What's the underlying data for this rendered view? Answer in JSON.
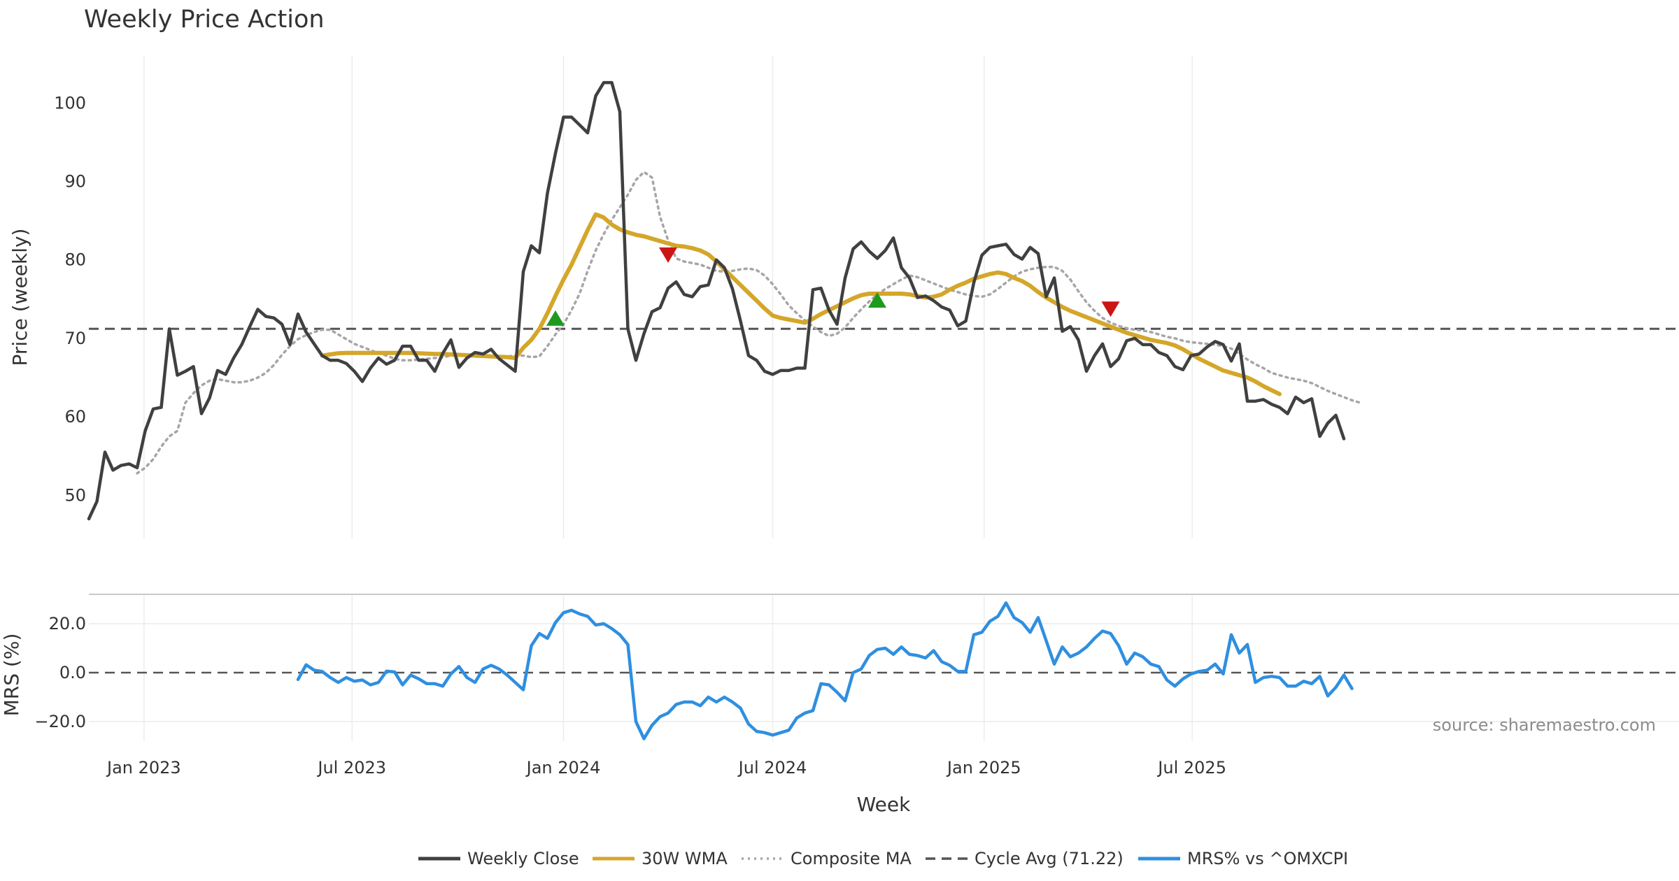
{
  "chart_data": {
    "type": "line",
    "title": "Weekly Price Action",
    "xlabel": "Week",
    "source": "source: sharemaestro.com",
    "x_start": "2022-11-14",
    "x_step_days": 7,
    "x_ticks": [
      {
        "label": "Jan 2023",
        "date": "2023-01-01"
      },
      {
        "label": "Jul 2023",
        "date": "2023-07-01"
      },
      {
        "label": "Jan 2024",
        "date": "2024-01-01"
      },
      {
        "label": "Jul 2024",
        "date": "2024-07-01"
      },
      {
        "label": "Jan 2025",
        "date": "2025-01-01"
      },
      {
        "label": "Jul 2025",
        "date": "2025-07-01"
      }
    ],
    "price_panel": {
      "ylabel": "Price (weekly)",
      "ylim": [
        44.5,
        106
      ],
      "yticks": [
        50,
        60,
        70,
        80,
        90,
        100
      ],
      "ytick_labels": [
        "50",
        "60",
        "70",
        "80",
        "90",
        "100"
      ],
      "cycle_avg": 71.22,
      "series": [
        {
          "name": "Weekly Close",
          "color": "#404040",
          "style": "solid",
          "start_index": 0,
          "values": [
            47,
            49.2,
            55.5,
            53.2,
            53.8,
            54,
            53.5,
            58.2,
            61,
            61.2,
            71.2,
            65.3,
            65.8,
            66.4,
            60.4,
            62.4,
            65.9,
            65.4,
            67.5,
            69.2,
            71.5,
            73.7,
            72.8,
            72.6,
            71.8,
            69.2,
            73.1,
            70.8,
            69.3,
            67.8,
            67.2,
            67.2,
            66.8,
            65.8,
            64.5,
            66.2,
            67.5,
            66.7,
            67.2,
            69,
            69,
            67.2,
            67.2,
            65.8,
            68.1,
            69.8,
            66.3,
            67.5,
            68.2,
            68,
            68.6,
            67.4,
            66.6,
            65.8,
            78.5,
            81.8,
            80.9,
            88.5,
            93.6,
            98.2,
            98.2,
            97.2,
            96.2,
            100.9,
            102.6,
            102.6,
            98.9,
            71.2,
            67.2,
            70.6,
            73.4,
            73.9,
            76.4,
            77.2,
            75.6,
            75.3,
            76.6,
            76.8,
            80,
            79,
            76.3,
            72.2,
            67.8,
            67.2,
            65.8,
            65.4,
            65.9,
            65.9,
            66.2,
            66.2,
            76.2,
            76.4,
            73.6,
            71.8,
            77.7,
            81.4,
            82.3,
            81.1,
            80.2,
            81.2,
            82.8,
            79,
            77.7,
            75.2,
            75.4,
            74.8,
            74,
            73.6,
            71.6,
            72.2,
            77.1,
            80.6,
            81.6,
            81.8,
            82,
            80.7,
            80.1,
            81.6,
            80.8,
            75.3,
            77.7,
            70.9,
            71.5,
            69.8,
            65.8,
            67.8,
            69.3,
            66.4,
            67.4,
            69.7,
            70,
            69.2,
            69.2,
            68.2,
            67.8,
            66.4,
            66,
            67.8,
            68,
            68.9,
            69.6,
            69.2,
            67.1,
            69.3,
            62,
            62,
            62.2,
            61.6,
            61.2,
            60.4,
            62.5,
            61.8,
            62.3,
            57.5,
            59.2,
            60.2,
            57.2
          ]
        },
        {
          "name": "30W WMA",
          "color": "#d4a62a",
          "style": "solid",
          "start_index": 29,
          "values": [
            67.8,
            67.95,
            68.1,
            68.15,
            68.15,
            68.15,
            68.15,
            68.15,
            68.15,
            68.15,
            68.15,
            68.15,
            68.1,
            68.05,
            68,
            68,
            67.95,
            67.9,
            67.85,
            67.8,
            67.75,
            67.7,
            67.65,
            67.6,
            67.5,
            68.8,
            69.8,
            71.2,
            73.2,
            75.4,
            77.5,
            79.4,
            81.6,
            83.8,
            85.8,
            85.4,
            84.5,
            83.9,
            83.5,
            83.2,
            83,
            82.7,
            82.4,
            82.1,
            81.8,
            81.7,
            81.5,
            81.2,
            80.7,
            79.8,
            78.8,
            77.8,
            76.8,
            75.8,
            74.8,
            73.8,
            72.9,
            72.6,
            72.4,
            72.2,
            72,
            72.5,
            73.1,
            73.6,
            74.1,
            74.6,
            75.1,
            75.5,
            75.7,
            75.7,
            75.7,
            75.7,
            75.7,
            75.6,
            75.4,
            75.2,
            75.3,
            75.6,
            76.2,
            76.7,
            77.1,
            77.6,
            77.9,
            78.2,
            78.4,
            78.2,
            77.7,
            77.3,
            76.7,
            75.9,
            75.2,
            74.6,
            74,
            73.5,
            73.1,
            72.7,
            72.3,
            71.9,
            71.5,
            71.1,
            70.7,
            70.4,
            70.1,
            69.8,
            69.6,
            69.4,
            69.1,
            68.6,
            68,
            67.4,
            66.9,
            66.4,
            65.9,
            65.6,
            65.3,
            65,
            64.5,
            63.9,
            63.4,
            62.9
          ]
        },
        {
          "name": "Composite MA",
          "color": "#a6a6a6",
          "style": "dotted",
          "start_index": 6,
          "values": [
            52.8,
            53.5,
            54.6,
            56.2,
            57.5,
            58.2,
            61.8,
            63,
            64,
            64.6,
            64.8,
            64.6,
            64.4,
            64.4,
            64.6,
            65,
            65.6,
            66.6,
            67.9,
            69,
            69.9,
            70.4,
            70.8,
            71.1,
            71.1,
            70.5,
            69.9,
            69.3,
            68.9,
            68.5,
            68.1,
            67.8,
            67.4,
            67.2,
            67.2,
            67.3,
            67.4,
            67.5,
            67.6,
            67.8,
            67.8,
            67.8,
            67.7,
            67.7,
            67.7,
            67.6,
            67.7,
            67.8,
            67.8,
            67.6,
            67.7,
            69,
            70.5,
            71.8,
            73.6,
            75.7,
            78.6,
            81.2,
            83.3,
            85.1,
            86.7,
            88.3,
            90.2,
            91.2,
            90.5,
            85.5,
            82.5,
            80.2,
            79.8,
            79.6,
            79.4,
            79,
            78.6,
            78.5,
            78.6,
            78.8,
            78.9,
            78.7,
            78,
            76.9,
            75.6,
            74.2,
            73.2,
            72.3,
            71.5,
            70.8,
            70.3,
            70.6,
            71.4,
            72.6,
            73.7,
            74.7,
            75.6,
            76.3,
            76.9,
            77.5,
            78,
            77.8,
            77.4,
            77,
            76.6,
            76.2,
            75.9,
            75.6,
            75.4,
            75.3,
            75.6,
            76.3,
            77.1,
            77.9,
            78.5,
            78.8,
            79,
            79.1,
            79.1,
            78.6,
            77.5,
            76,
            74.6,
            73.5,
            72.6,
            72,
            71.6,
            71.3,
            71.1,
            71,
            70.8,
            70.5,
            70.2,
            70,
            69.7,
            69.5,
            69.4,
            69.3,
            69.2,
            69,
            68.7,
            68,
            67.3,
            66.7,
            66.2,
            65.6,
            65.3,
            65,
            64.8,
            64.6,
            64.3,
            63.8,
            63.3,
            62.9,
            62.5,
            62.1,
            61.8
          ]
        }
      ],
      "buy_signals": [
        {
          "index": 58,
          "price": 72.5
        },
        {
          "index": 98,
          "price": 74.8
        }
      ],
      "sell_signals": [
        {
          "index": 72,
          "price": 80.7
        },
        {
          "index": 127,
          "price": 73.8
        }
      ]
    },
    "mrs_panel": {
      "ylabel": "MRS (%)",
      "ylim": [
        -28,
        32
      ],
      "yticks": [
        20,
        0,
        -20
      ],
      "ytick_labels": [
        "20.0",
        "0.0",
        "−20.0"
      ],
      "series": [
        {
          "name": "MRS% vs ^OMXCPI",
          "color": "#2f8fe0",
          "style": "solid",
          "start_index": 26,
          "values": [
            -2.8,
            3.2,
            1,
            0.5,
            -2,
            -4,
            -2,
            -3.5,
            -3,
            -5,
            -4,
            0.6,
            0.3,
            -5,
            -1,
            -2.5,
            -4.5,
            -4.5,
            -5.5,
            -0.5,
            2.5,
            -2,
            -4,
            1.5,
            3,
            1.5,
            -1,
            -4,
            -7,
            11,
            16,
            14,
            20.5,
            24.5,
            25.5,
            24,
            23,
            19.5,
            20,
            18,
            15.5,
            11.5,
            -20,
            -27,
            -21.5,
            -18,
            -16.5,
            -13,
            -12,
            -12,
            -13.5,
            -10,
            -12,
            -10,
            -12,
            -14.5,
            -21,
            -24,
            -24.5,
            -25.5,
            -24.5,
            -23.5,
            -18.5,
            -16.5,
            -15.5,
            -4.5,
            -5,
            -8,
            -11.5,
            0,
            1.5,
            7,
            9.5,
            10,
            7.5,
            10.5,
            7.5,
            7,
            6,
            9,
            4.5,
            3,
            0.5,
            0.5,
            15.5,
            16.5,
            21,
            23,
            28.5,
            22.5,
            20.5,
            16.5,
            22.5,
            13,
            3.5,
            10.5,
            6.5,
            8,
            10.5,
            14,
            17,
            16,
            11,
            3.5,
            8,
            6.5,
            3.5,
            2.5,
            -3,
            -5.5,
            -2.5,
            -0.5,
            0.5,
            1,
            3.5,
            -0.5,
            15.5,
            8,
            11.5,
            -4,
            -2,
            -1.5,
            -2,
            -5.5,
            -5.5,
            -3.5,
            -4.5,
            -1.5,
            -9.5,
            -6,
            -1,
            -6.5
          ]
        }
      ]
    },
    "legend": [
      {
        "label": "Weekly Close",
        "color": "#404040",
        "style": "solid"
      },
      {
        "label": "30W WMA",
        "color": "#d4a62a",
        "style": "solid"
      },
      {
        "label": "Composite MA",
        "color": "#a6a6a6",
        "style": "dotted"
      },
      {
        "label": "Cycle Avg (71.22)",
        "color": "#555555",
        "style": "dashed"
      },
      {
        "label": "MRS% vs ^OMXCPI",
        "color": "#2f8fe0",
        "style": "solid"
      }
    ]
  }
}
